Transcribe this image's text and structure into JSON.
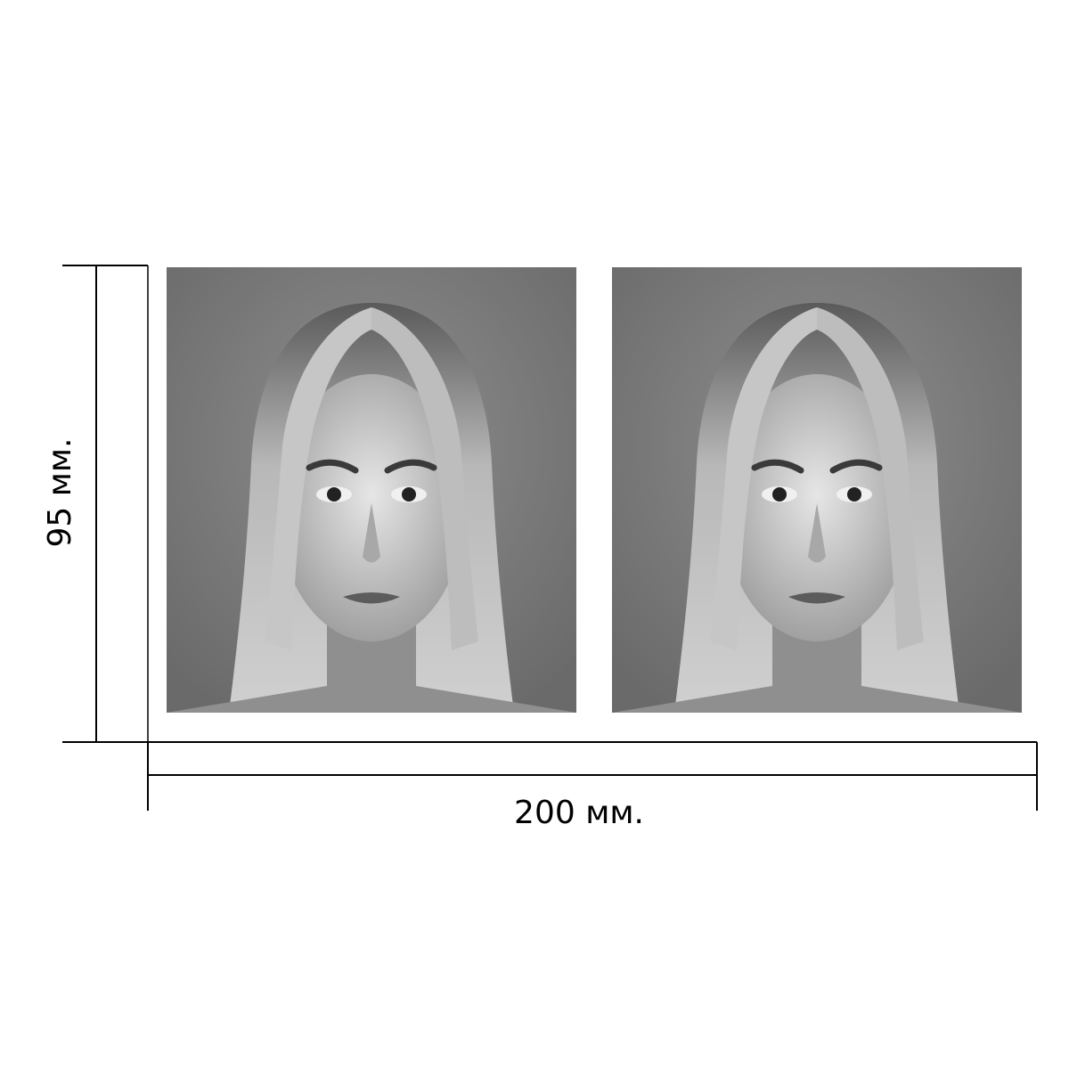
{
  "dimensions": {
    "width_label": "200 мм.",
    "height_label": "95 мм."
  },
  "photos": [
    {
      "subject": "woman-portrait",
      "style": "black-and-white"
    },
    {
      "subject": "woman-portrait",
      "style": "black-and-white"
    }
  ],
  "colors": {
    "background": "#ffffff",
    "lines": "#000000",
    "photo_backdrop": "#7a7a7a"
  }
}
